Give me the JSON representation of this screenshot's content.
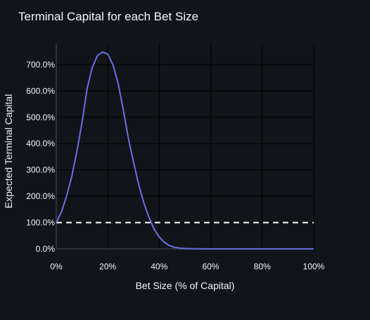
{
  "chart_data": {
    "type": "line",
    "title": "Terminal Capital for each Bet Size",
    "xlabel": "Bet Size (% of Capital)",
    "ylabel": "Expected Terminal Capital",
    "xlim": [
      0,
      100
    ],
    "ylim": [
      -3,
      780
    ],
    "x_ticks": [
      0,
      20,
      40,
      60,
      80,
      100
    ],
    "x_tick_labels": [
      "0%",
      "20%",
      "40%",
      "60%",
      "80%",
      "100%"
    ],
    "y_ticks": [
      0,
      100,
      200,
      300,
      400,
      500,
      600,
      700
    ],
    "y_tick_labels": [
      "0.0%",
      "100.0%",
      "200.0%",
      "300.0%",
      "400.0%",
      "500.0%",
      "600.0%",
      "700.0%"
    ],
    "grid": true,
    "legend": "none",
    "series": [
      {
        "x": [
          0,
          2,
          4,
          6,
          8,
          10,
          12,
          14,
          16,
          18,
          20,
          22,
          24,
          26,
          28,
          30,
          32,
          34,
          36,
          38,
          40,
          42,
          44,
          46,
          48,
          50,
          52,
          54,
          56,
          58,
          60,
          65,
          70,
          75,
          80,
          85,
          90,
          95,
          100
        ],
        "y": [
          100,
          140,
          200,
          275,
          370,
          480,
          610,
          690,
          735,
          748,
          740,
          700,
          630,
          530,
          420,
          330,
          245,
          175,
          120,
          75,
          45,
          25,
          12,
          6,
          3,
          1.5,
          0.8,
          0.4,
          0.2,
          0.1,
          0,
          0,
          0,
          0,
          0,
          0,
          0,
          0,
          0
        ],
        "color": "#6a6ee6"
      }
    ],
    "reference_line": {
      "y": 100,
      "style": "dashed",
      "color": "#ffffff"
    }
  }
}
